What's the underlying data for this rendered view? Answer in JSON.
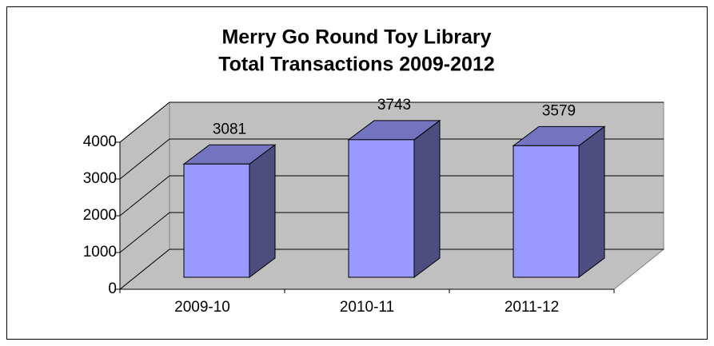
{
  "chart_data": {
    "type": "bar3d",
    "title": [
      "Merry Go Round Toy Library",
      "Total Transactions 2009-2012"
    ],
    "categories": [
      "2009-10",
      "2010-11",
      "2011-12"
    ],
    "values": [
      3081,
      3743,
      3579
    ],
    "color": "#9999ff",
    "ylim": [
      0,
      4000
    ],
    "yticks": [
      0,
      1000,
      2000,
      3000,
      4000
    ],
    "grid": true
  }
}
